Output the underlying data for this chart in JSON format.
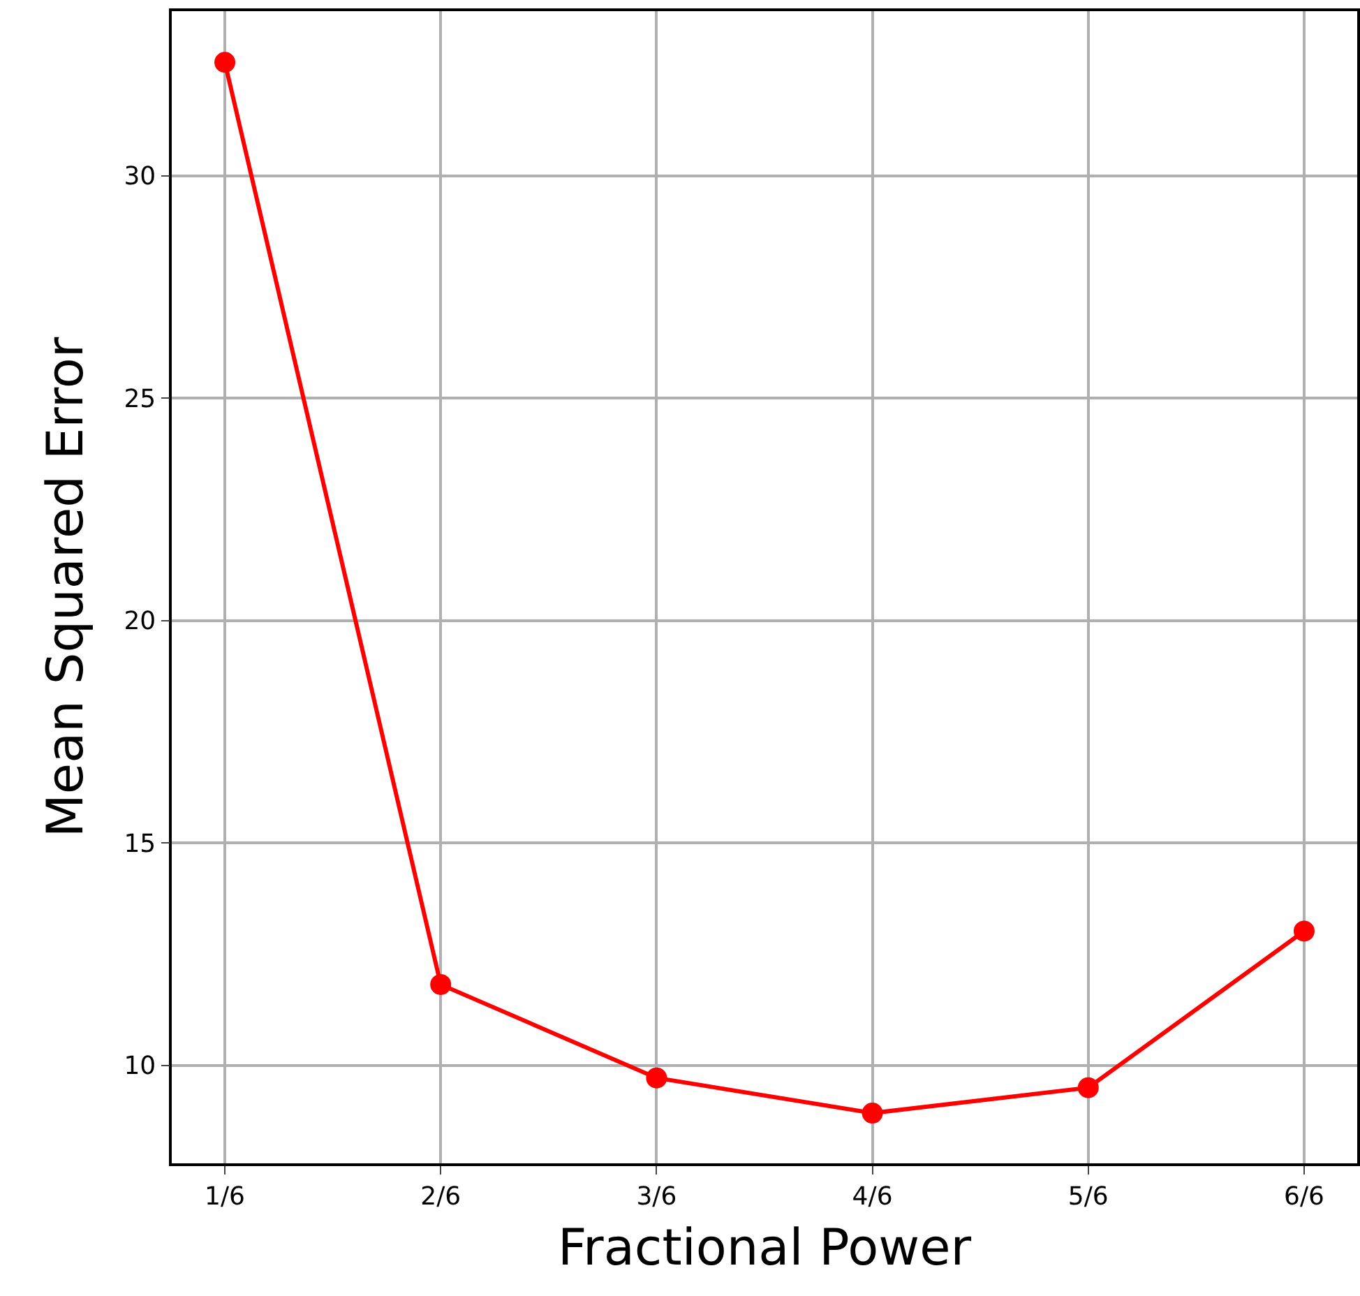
{
  "chart_data": {
    "type": "line",
    "xlabel": "Fractional Power",
    "ylabel": "Mean Squared Error",
    "categories": [
      "1/6",
      "2/6",
      "3/6",
      "4/6",
      "5/6",
      "6/6"
    ],
    "series": [
      {
        "color": "#ff0000",
        "values": [
          32.55,
          11.82,
          9.72,
          8.93,
          9.5,
          13.02
        ]
      }
    ],
    "ylim": [
      7.8,
      33.7
    ],
    "yticks": [
      10,
      15,
      20,
      25,
      30
    ],
    "grid": true,
    "legend": false,
    "marker": "circle",
    "line_style": "solid"
  }
}
